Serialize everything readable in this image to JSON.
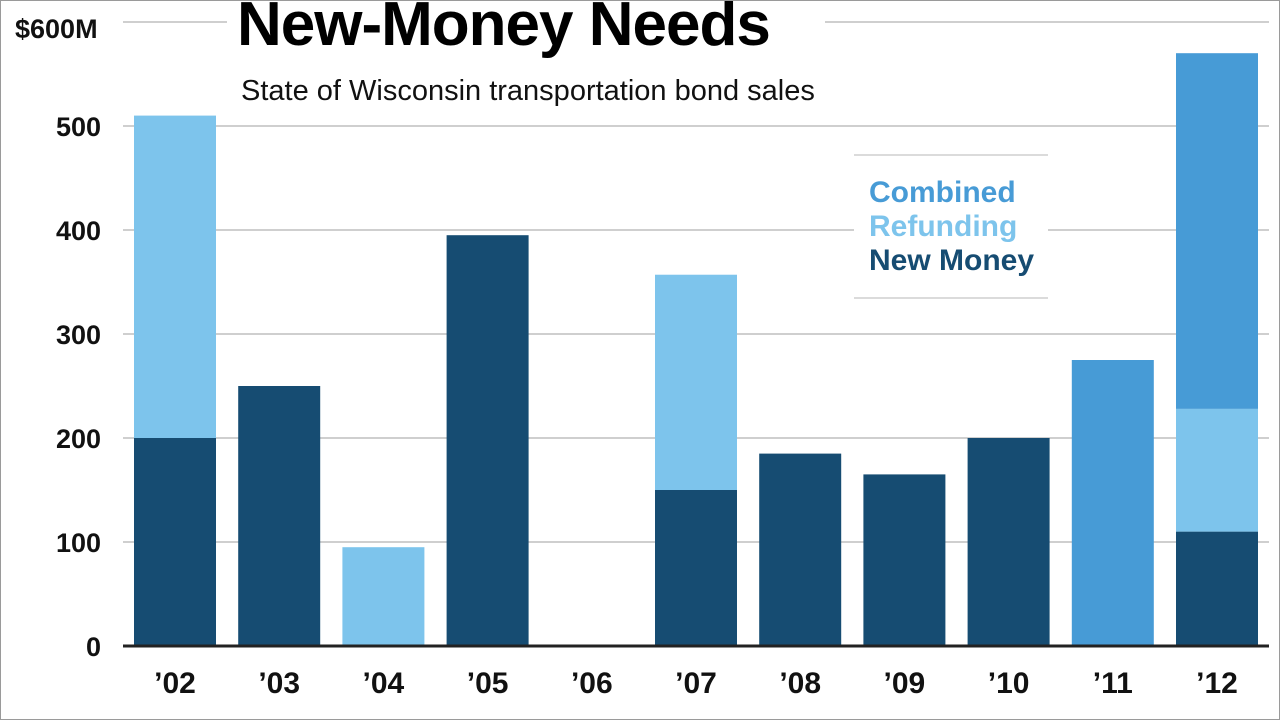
{
  "chart_data": {
    "type": "bar",
    "stacked": true,
    "title": "New-Money Needs",
    "subtitle": "State of Wisconsin transportation bond sales",
    "xlabel": "",
    "ylabel": "",
    "top_tick_label": "$600M",
    "y_ticks": [
      0,
      100,
      200,
      300,
      400,
      500
    ],
    "ylim": [
      0,
      600
    ],
    "grid": true,
    "legend_position": "top-right",
    "categories": [
      "’02",
      "’03",
      "’04",
      "’05",
      "’06",
      "’07",
      "’08",
      "’09",
      "’10",
      "’11",
      "’12"
    ],
    "series": [
      {
        "name": "New Money",
        "color": "#164c72",
        "values": [
          200,
          250,
          0,
          395,
          0,
          150,
          185,
          165,
          200,
          0,
          110
        ]
      },
      {
        "name": "Refunding",
        "color": "#7dc4ec",
        "values": [
          310,
          0,
          95,
          0,
          0,
          207,
          0,
          0,
          0,
          0,
          118
        ]
      },
      {
        "name": "Combined",
        "color": "#479bd6",
        "values": [
          0,
          0,
          0,
          0,
          0,
          0,
          0,
          0,
          0,
          275,
          342
        ]
      }
    ],
    "legend_order": [
      "Combined",
      "Refunding",
      "New Money"
    ],
    "grid_color": "#cfcfcf",
    "axis_color": "#222222"
  }
}
